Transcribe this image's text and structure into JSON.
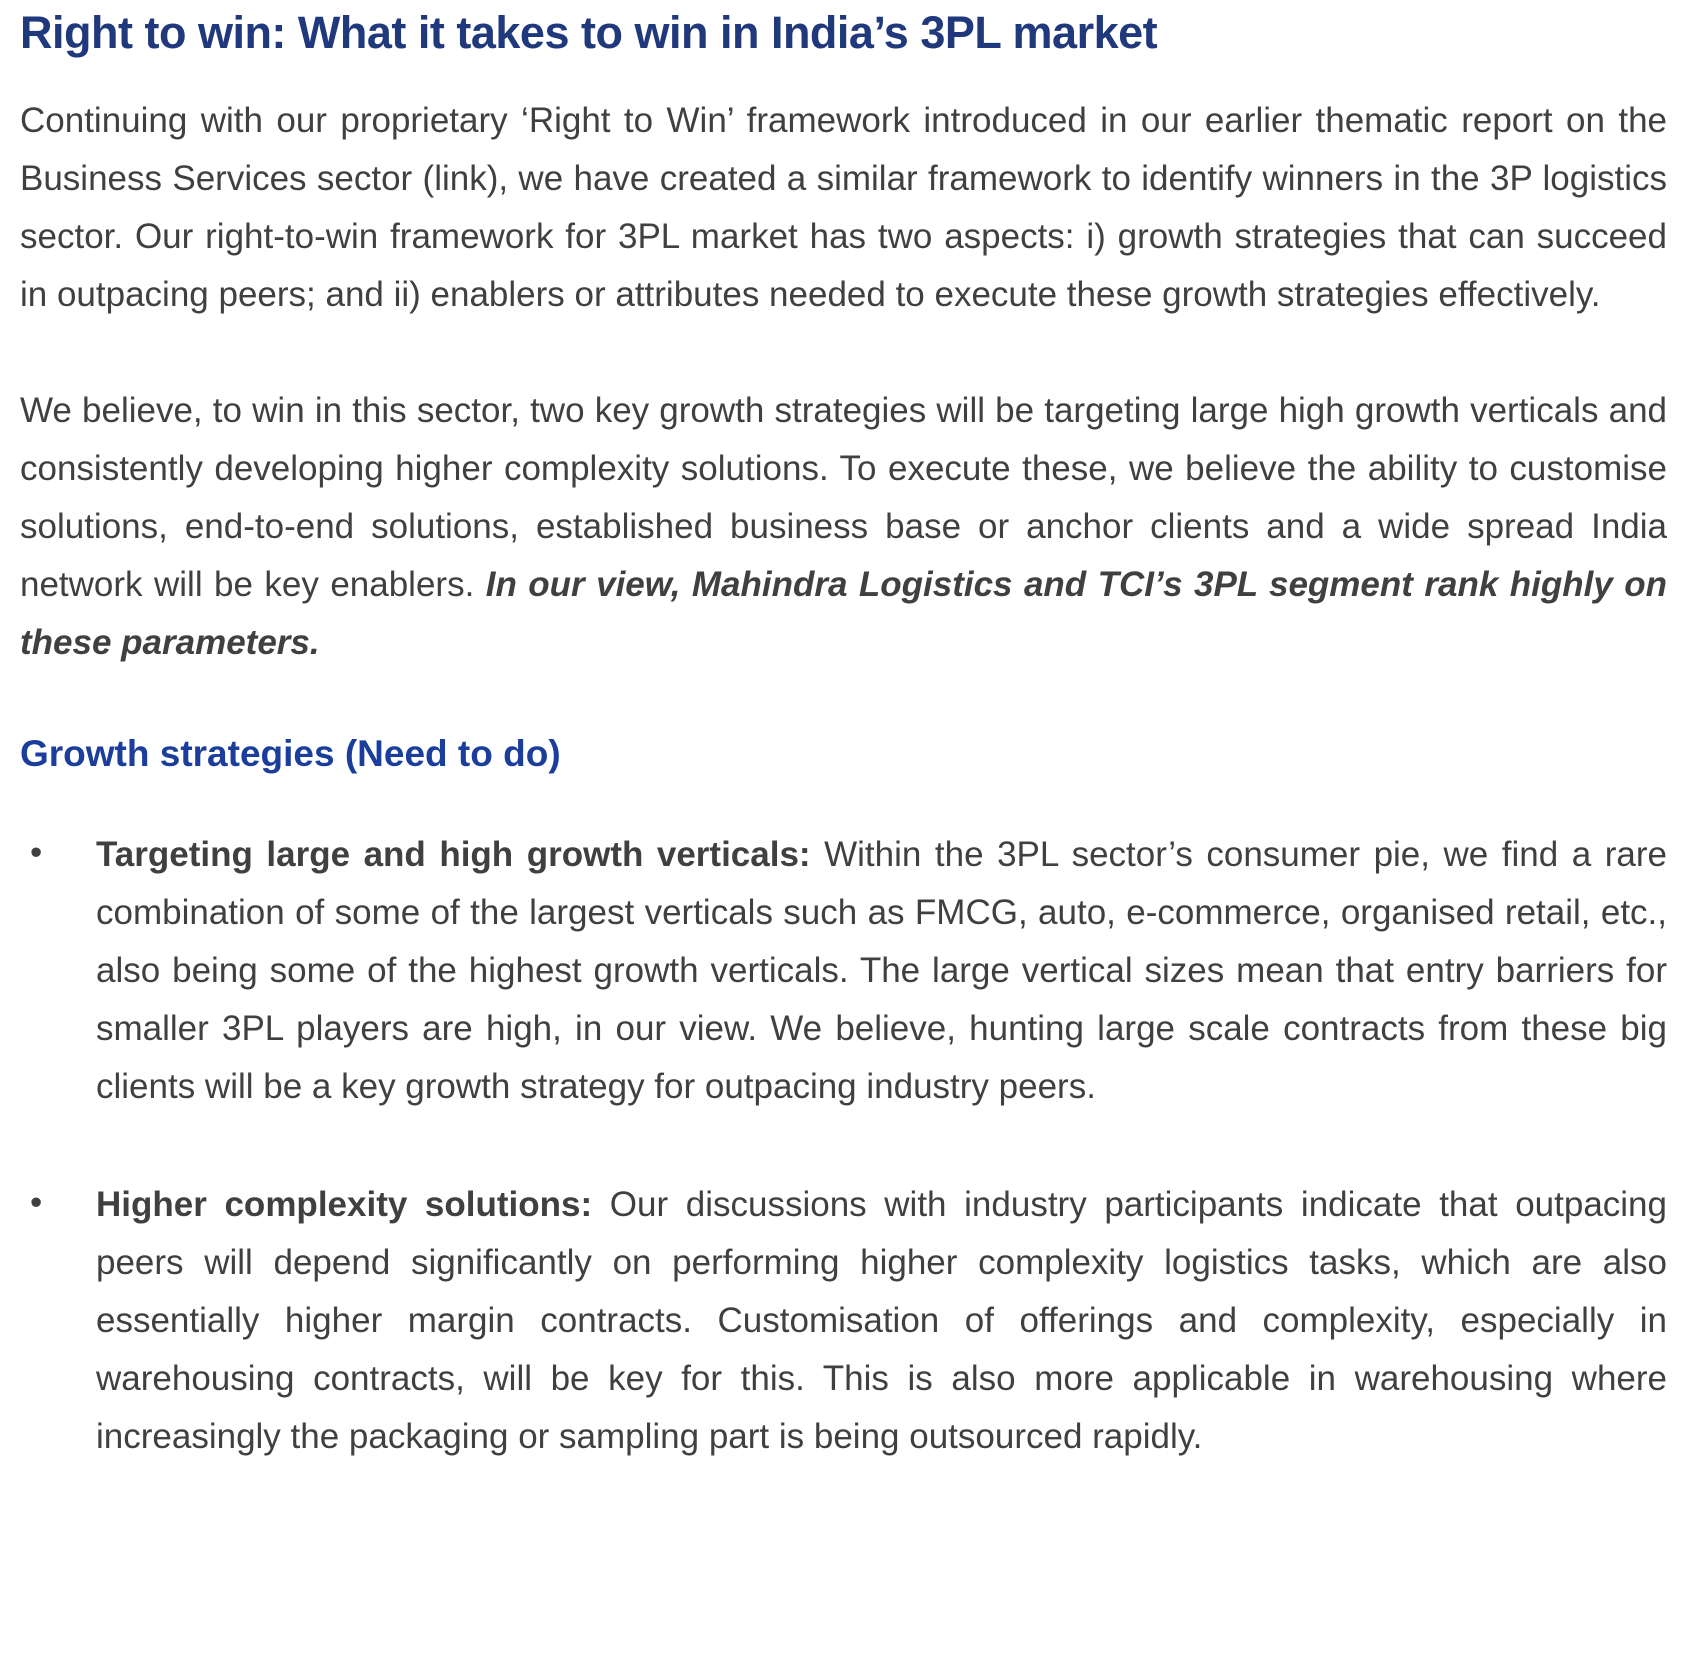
{
  "page": {
    "title": "Right to win: What it takes to win in India’s 3PL market",
    "colors": {
      "title_blue": "#20397D",
      "section_heading_blue": "#1B3E9C",
      "body_text_gray": "#404040",
      "background": "#FFFFFF"
    }
  },
  "intro_paragraph": {
    "before_link": "Continuing with our proprietary ‘Right to Win’ framework introduced in our earlier thematic report on the Business Services sector (",
    "link_label": "link",
    "after_link": "), we have created a similar framework to identify winners in the 3P logistics sector. Our right-to-win framework for 3PL market has two aspects: i) growth strategies that can succeed in outpacing peers; and ii) enablers or attributes needed to execute these growth strategies effectively."
  },
  "belief_paragraph": {
    "text": "We believe, to win in this sector, two key growth strategies will be targeting large high growth verticals and consistently developing higher complexity solutions. To execute these, we believe the ability to customise solutions, end-to-end solutions, established business base or anchor clients and a wide spread India network will be key enablers. ",
    "emphasis": "In our view, Mahindra Logistics and TCI’s 3PL segment rank highly on these parameters."
  },
  "growth_section": {
    "heading": "Growth strategies (Need to do)",
    "bullet_char": "•",
    "bullets": [
      {
        "lead": "Targeting large and high growth verticals:",
        "text": " Within the 3PL sector’s consumer pie, we find a rare combination of some of the largest verticals such as FMCG, auto, e-commerce, organised retail, etc., also being some of the highest growth verticals. The large vertical sizes mean that entry barriers for smaller 3PL players are high, in our view. We believe, hunting large scale contracts from these big clients will be a key growth strategy for outpacing industry peers."
      },
      {
        "lead": "Higher complexity solutions:",
        "text": " Our discussions with industry participants indicate that outpacing peers will depend significantly on performing higher complexity logistics tasks, which are also essentially higher margin contracts. Customisation of offerings and complexity, especially in warehousing contracts, will be key for this. This is also more applicable in warehousing where increasingly the packaging or sampling part is being outsourced rapidly."
      }
    ]
  }
}
